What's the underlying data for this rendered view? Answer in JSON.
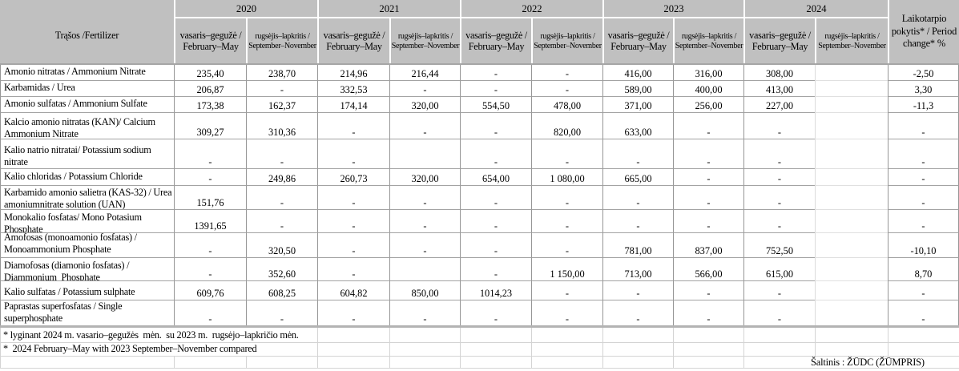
{
  "header": {
    "fertilizer": "Trąšos /Fertilizer",
    "period_change": "Laikotarpio\npokytis* / Period\nchange* %",
    "feb_may": "vasaris–gegužė /\nFebruary–May",
    "sep_nov": "rugsėjis–lapkritis /\nSeptember–November",
    "years": [
      {
        "year": "2020"
      },
      {
        "year": "2021"
      },
      {
        "year": "2022"
      },
      {
        "year": "2023"
      },
      {
        "year": "2024"
      }
    ]
  },
  "rows": [
    {
      "name": "Amonio nitratas / Ammonium Nitrate",
      "values": [
        "235,40",
        "238,70",
        "214,96",
        "216,44",
        "-",
        "-",
        "416,00",
        "316,00",
        "308,00",
        "",
        "-2,50"
      ]
    },
    {
      "name": "Karbamidas / Urea",
      "values": [
        "206,87",
        "-",
        "332,53",
        "-",
        "-",
        "-",
        "589,00",
        "400,00",
        "413,00",
        "",
        "3,30"
      ]
    },
    {
      "name": "Amonio sulfatas / Ammonium Sulfate",
      "values": [
        "173,38",
        "162,37",
        "174,14",
        "320,00",
        "554,50",
        "478,00",
        "371,00",
        "256,00",
        "227,00",
        "",
        "-11,3"
      ]
    },
    {
      "name": "Kalcio amonio nitratas (KAN)/ Calcium\nAmmonium Nitrate",
      "values": [
        "309,27",
        "310,36",
        "-",
        "-",
        "-",
        "820,00",
        "633,00",
        "-",
        "-",
        "",
        "-"
      ]
    },
    {
      "name": "Kalio natrio nitratai/ Potassium sodium\nnitrate",
      "values": [
        "-",
        "-",
        "-",
        "",
        "-",
        "-",
        "-",
        "-",
        "-",
        "",
        "-"
      ]
    },
    {
      "name": "Kalio chloridas / Potassium Chloride",
      "values": [
        "-",
        "249,86",
        "260,73",
        "320,00",
        "654,00",
        "1 080,00",
        "665,00",
        "-",
        "-",
        "",
        "-"
      ]
    },
    {
      "name": "Karbamido amonio salietra (KAS-32) / Urea\namoniumnitrate solution (UAN)",
      "values": [
        "151,76",
        "-",
        "-",
        "-",
        "-",
        "-",
        "-",
        "-",
        "-",
        "",
        "-"
      ]
    },
    {
      "name": "Monokalio fosfatas/ Mono Potasium\nPhosphate",
      "values": [
        "1391,65",
        "-",
        "-",
        "-",
        "-",
        "-",
        "-",
        "-",
        "-",
        "",
        "-"
      ]
    },
    {
      "name": "Amofosas (monoamonio fosfatas) /\nMonoammonium Phosphate",
      "values": [
        "-",
        "320,50",
        "-",
        "-",
        "-",
        "-",
        "781,00",
        "837,00",
        "752,50",
        "",
        "-10,10"
      ]
    },
    {
      "name": "Diamofosas (diamonio fosfatas) /\nDiammonium  Phosphate",
      "values": [
        "-",
        "352,60",
        "-",
        "",
        "-",
        "1 150,00",
        "713,00",
        "566,00",
        "615,00",
        "",
        "8,70"
      ]
    },
    {
      "name": "Kalio sulfatas / Potassium sulphate",
      "values": [
        "609,76",
        "608,25",
        "604,82",
        "850,00",
        "1014,23",
        "-",
        "-",
        "-",
        "-",
        "",
        "-"
      ]
    },
    {
      "name": "Paprastas superfosfatas / Single\nsuperphosphate",
      "values": [
        "-",
        "-",
        "-",
        "-",
        "-",
        "-",
        "-",
        "-",
        "-",
        "",
        "-"
      ]
    }
  ],
  "footnotes": {
    "lt": "* lyginant 2024 m. vasario–gegužės  mėn.  su 2023 m.  rugsėjo–lapkričio mėn.",
    "en": "*  2024 February–May with 2023 September–November compared"
  },
  "source": "Šaltinis : ŽŪDC (ŽŪMPRIS)"
}
